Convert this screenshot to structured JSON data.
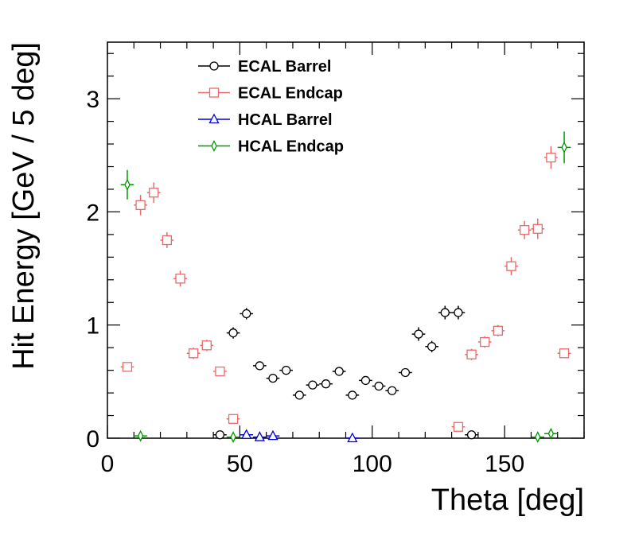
{
  "chart_data": {
    "type": "scatter",
    "title": "",
    "xlabel": "Theta [deg]",
    "ylabel": "Hit Energy [GeV / 5 deg]",
    "xlim": [
      0,
      180
    ],
    "ylim": [
      0,
      3.5
    ],
    "x_ticks": [
      0,
      50,
      100,
      150
    ],
    "y_ticks": [
      0,
      1,
      2,
      3
    ],
    "grid": false,
    "legend_position": "top-center",
    "series": [
      {
        "name": "ECAL Barrel",
        "color": "#000000",
        "marker": "circle",
        "x": [
          42.5,
          47.5,
          52.5,
          57.5,
          62.5,
          67.5,
          72.5,
          77.5,
          82.5,
          87.5,
          92.5,
          97.5,
          102.5,
          107.5,
          112.5,
          117.5,
          122.5,
          127.5,
          132.5,
          137.5
        ],
        "y": [
          0.03,
          0.93,
          1.1,
          0.64,
          0.53,
          0.6,
          0.38,
          0.47,
          0.48,
          0.59,
          0.38,
          0.51,
          0.46,
          0.42,
          0.58,
          0.92,
          0.81,
          1.11,
          1.11,
          0.03
        ],
        "yerr": [
          0.02,
          0.05,
          0.05,
          0.03,
          0.03,
          0.04,
          0.02,
          0.02,
          0.02,
          0.03,
          0.02,
          0.02,
          0.02,
          0.02,
          0.03,
          0.06,
          0.05,
          0.06,
          0.06,
          0.02
        ]
      },
      {
        "name": "ECAL Endcap",
        "color": "#e86a6a",
        "marker": "square",
        "x": [
          7.5,
          12.5,
          17.5,
          22.5,
          27.5,
          32.5,
          37.5,
          42.5,
          47.5,
          132.5,
          137.5,
          142.5,
          147.5,
          152.5,
          157.5,
          162.5,
          167.5,
          172.5
        ],
        "y": [
          0.63,
          2.06,
          2.17,
          1.75,
          1.41,
          0.75,
          0.82,
          0.59,
          0.17,
          0.1,
          0.74,
          0.85,
          0.95,
          1.52,
          1.84,
          1.85,
          2.48,
          0.75
        ],
        "yerr": [
          0.03,
          0.09,
          0.09,
          0.07,
          0.07,
          0.05,
          0.05,
          0.04,
          0.03,
          0.03,
          0.05,
          0.05,
          0.05,
          0.08,
          0.08,
          0.09,
          0.1,
          0.03
        ]
      },
      {
        "name": "HCAL Barrel",
        "color": "#0000dd",
        "marker": "triangle",
        "x": [
          52.5,
          57.5,
          62.5,
          92.5
        ],
        "y": [
          0.03,
          0.01,
          0.02,
          0.0
        ],
        "yerr": [
          0.0,
          0.0,
          0.0,
          0.0
        ]
      },
      {
        "name": "HCAL Endcap",
        "color": "#009900",
        "marker": "diamond",
        "x": [
          7.5,
          12.5,
          47.5,
          162.5,
          167.5,
          172.5
        ],
        "y": [
          2.24,
          0.02,
          0.01,
          0.01,
          0.04,
          2.57
        ],
        "yerr": [
          0.13,
          0.02,
          0.02,
          0.02,
          0.02,
          0.14
        ]
      }
    ]
  }
}
